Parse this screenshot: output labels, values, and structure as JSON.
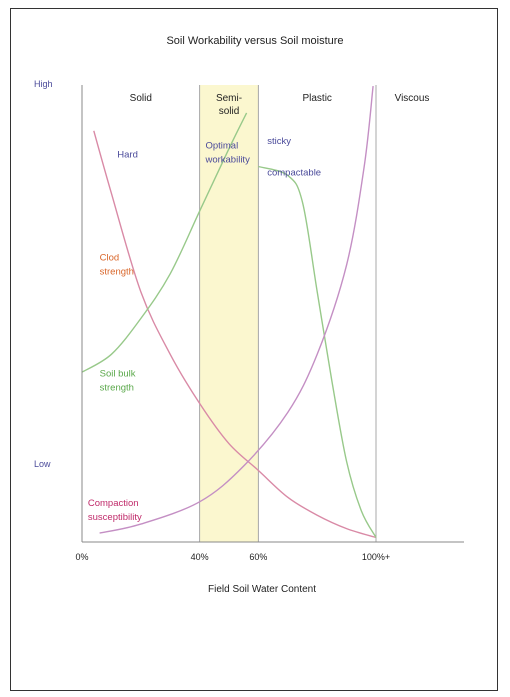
{
  "chart_data": {
    "type": "line",
    "title": "Soil Workability versus Soil moisture",
    "xlabel": "Field Soil Water Content",
    "ylabel": "",
    "x_ticks": [
      {
        "label": "0%",
        "value": 0
      },
      {
        "label": "40%",
        "value": 40
      },
      {
        "label": "60%",
        "value": 60
      },
      {
        "label": "100%+",
        "value": 100
      }
    ],
    "y_ticks": [
      {
        "label": "High",
        "value": 1.0
      },
      {
        "label": "Low",
        "value": 0.15
      }
    ],
    "xlim": [
      0,
      110
    ],
    "ylim": [
      0,
      1.05
    ],
    "zones": [
      {
        "label": "Solid",
        "from": 0,
        "to": 40,
        "fill": "#ffffff"
      },
      {
        "label": "Semi-\nsolid",
        "from": 40,
        "to": 60,
        "fill": "#fbf7cf"
      },
      {
        "label": "Plastic",
        "from": 60,
        "to": 100,
        "fill": "#ffffff"
      },
      {
        "label": "Viscous",
        "from": 100,
        "to": 110,
        "fill": "#ffffff"
      }
    ],
    "series": [
      {
        "name": "Hard",
        "color": "#d98aa6",
        "points": [
          [
            4,
            0.92
          ],
          [
            10,
            0.78
          ],
          [
            20,
            0.56
          ],
          [
            30,
            0.42
          ],
          [
            40,
            0.31
          ],
          [
            50,
            0.22
          ],
          [
            60,
            0.16
          ],
          [
            70,
            0.1
          ],
          [
            80,
            0.06
          ],
          [
            90,
            0.03
          ],
          [
            100,
            0.01
          ]
        ]
      },
      {
        "name": "Soil bulk\nstrength",
        "color": "#98c98a",
        "points": [
          [
            0,
            0.38
          ],
          [
            10,
            0.42
          ],
          [
            20,
            0.5
          ],
          [
            30,
            0.6
          ],
          [
            40,
            0.74
          ],
          [
            50,
            0.88
          ],
          [
            56,
            0.96
          ]
        ]
      },
      {
        "name": "sticky\ncompactable",
        "color": "#98c98a",
        "points": [
          [
            60,
            0.84
          ],
          [
            70,
            0.82
          ],
          [
            75,
            0.76
          ],
          [
            80,
            0.56
          ],
          [
            85,
            0.36
          ],
          [
            90,
            0.18
          ],
          [
            95,
            0.07
          ],
          [
            100,
            0.01
          ]
        ]
      },
      {
        "name": "Compaction\nsusceptibility",
        "color": "#c48fc4",
        "points": [
          [
            6,
            0.02
          ],
          [
            20,
            0.04
          ],
          [
            40,
            0.09
          ],
          [
            55,
            0.17
          ],
          [
            70,
            0.29
          ],
          [
            80,
            0.42
          ],
          [
            90,
            0.62
          ],
          [
            96,
            0.84
          ],
          [
            99,
            1.02
          ]
        ]
      }
    ],
    "annotations": [
      {
        "text": "Hard",
        "color": "#4a4a9a",
        "x": 12,
        "y": 0.86
      },
      {
        "text": "Clod\nstrength",
        "color": "#d9662a",
        "x": 6,
        "y": 0.63
      },
      {
        "text": "Soil bulk\nstrength",
        "color": "#5aa84a",
        "x": 6,
        "y": 0.37
      },
      {
        "text": "Optimal\nworkability",
        "color": "#4a4a9a",
        "x": 42,
        "y": 0.88
      },
      {
        "text": "sticky",
        "color": "#4a4a9a",
        "x": 63,
        "y": 0.89
      },
      {
        "text": "compactable",
        "color": "#4a4a9a",
        "x": 63,
        "y": 0.82
      },
      {
        "text": "Compaction\nsusceptibility",
        "color": "#c02a6a",
        "x": 2,
        "y": 0.08
      }
    ],
    "grid": false,
    "legend": "none"
  }
}
